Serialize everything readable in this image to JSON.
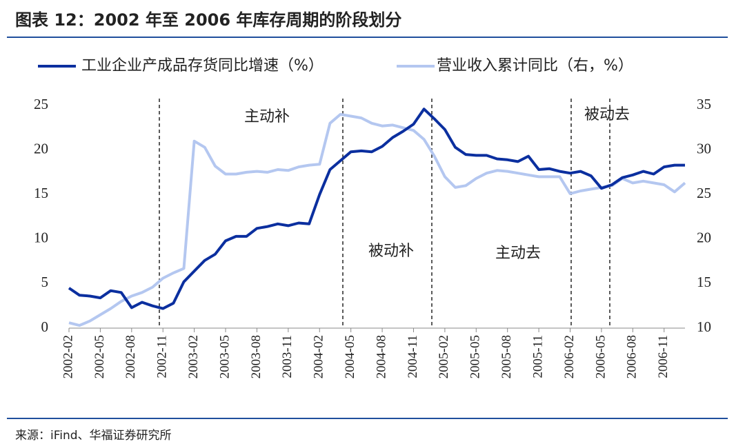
{
  "chart_data": {
    "type": "line",
    "title": "图表 12：2002 年至 2006 年库存周期的阶段划分",
    "source": "来源：iFind、华福证券研究所",
    "annotations": [
      "主动补",
      "被动补",
      "主动去",
      "被动去"
    ],
    "categories": [
      "2002-02",
      null,
      null,
      "2002-05",
      null,
      null,
      "2002-08",
      null,
      null,
      "2002-11",
      null,
      null,
      "2003-02",
      null,
      null,
      "2003-05",
      null,
      null,
      "2003-08",
      null,
      null,
      "2003-11",
      null,
      null,
      "2004-02",
      null,
      null,
      "2004-05",
      null,
      null,
      "2004-08",
      null,
      null,
      "2004-11",
      null,
      null,
      "2005-02",
      null,
      null,
      "2005-05",
      null,
      null,
      "2005-08",
      null,
      null,
      "2005-11",
      null,
      null,
      "2006-02",
      null,
      null,
      "2006-05",
      null,
      null,
      "2006-08",
      null,
      null,
      "2006-11",
      null,
      null
    ],
    "series": [
      {
        "name": "工业企业产成品存货同比增速（%）",
        "color": "#0b2f9f",
        "axis": "y",
        "values": [
          4.5,
          3.7,
          3.6,
          3.4,
          4.2,
          4.0,
          2.3,
          2.9,
          2.5,
          2.2,
          2.8,
          5.2,
          6.4,
          7.6,
          8.3,
          9.8,
          10.3,
          10.3,
          11.2,
          11.4,
          11.7,
          11.5,
          11.8,
          11.7,
          15.0,
          17.8,
          18.8,
          19.8,
          19.9,
          19.8,
          20.4,
          21.4,
          22.1,
          22.9,
          24.6,
          23.5,
          22.3,
          20.3,
          19.5,
          19.4,
          19.4,
          19.0,
          18.9,
          18.7,
          19.3,
          17.8,
          17.9,
          17.6,
          17.4,
          17.6,
          17.1,
          15.7,
          16.1,
          16.9,
          17.2,
          17.6,
          17.3,
          18.1,
          18.3,
          18.3
        ]
      },
      {
        "name": "营业收入累计同比（右，%）",
        "color": "#b4c7f0",
        "axis": "y2",
        "values": [
          10.6,
          10.3,
          10.8,
          11.5,
          12.2,
          13.0,
          13.6,
          14.0,
          14.6,
          15.6,
          16.2,
          16.7,
          31.0,
          30.3,
          28.2,
          27.3,
          27.3,
          27.5,
          27.6,
          27.5,
          27.8,
          27.7,
          28.1,
          28.3,
          28.4,
          33.0,
          34.0,
          33.8,
          33.6,
          33.0,
          32.7,
          32.8,
          32.5,
          32.2,
          31.2,
          29.3,
          27.0,
          25.8,
          26.0,
          26.8,
          27.4,
          27.7,
          27.6,
          27.4,
          27.2,
          27.0,
          27.0,
          27.0,
          25.1,
          25.4,
          25.6,
          25.8,
          26.0,
          26.8,
          26.3,
          26.5,
          26.3,
          26.1,
          25.3,
          26.3
        ]
      }
    ],
    "ylim": [
      0,
      25
    ],
    "yticks": [
      0,
      5,
      10,
      15,
      20,
      25
    ],
    "y2lim": [
      10,
      35
    ],
    "y2ticks": [
      10,
      15,
      20,
      25,
      30,
      35
    ],
    "grid": false
  }
}
